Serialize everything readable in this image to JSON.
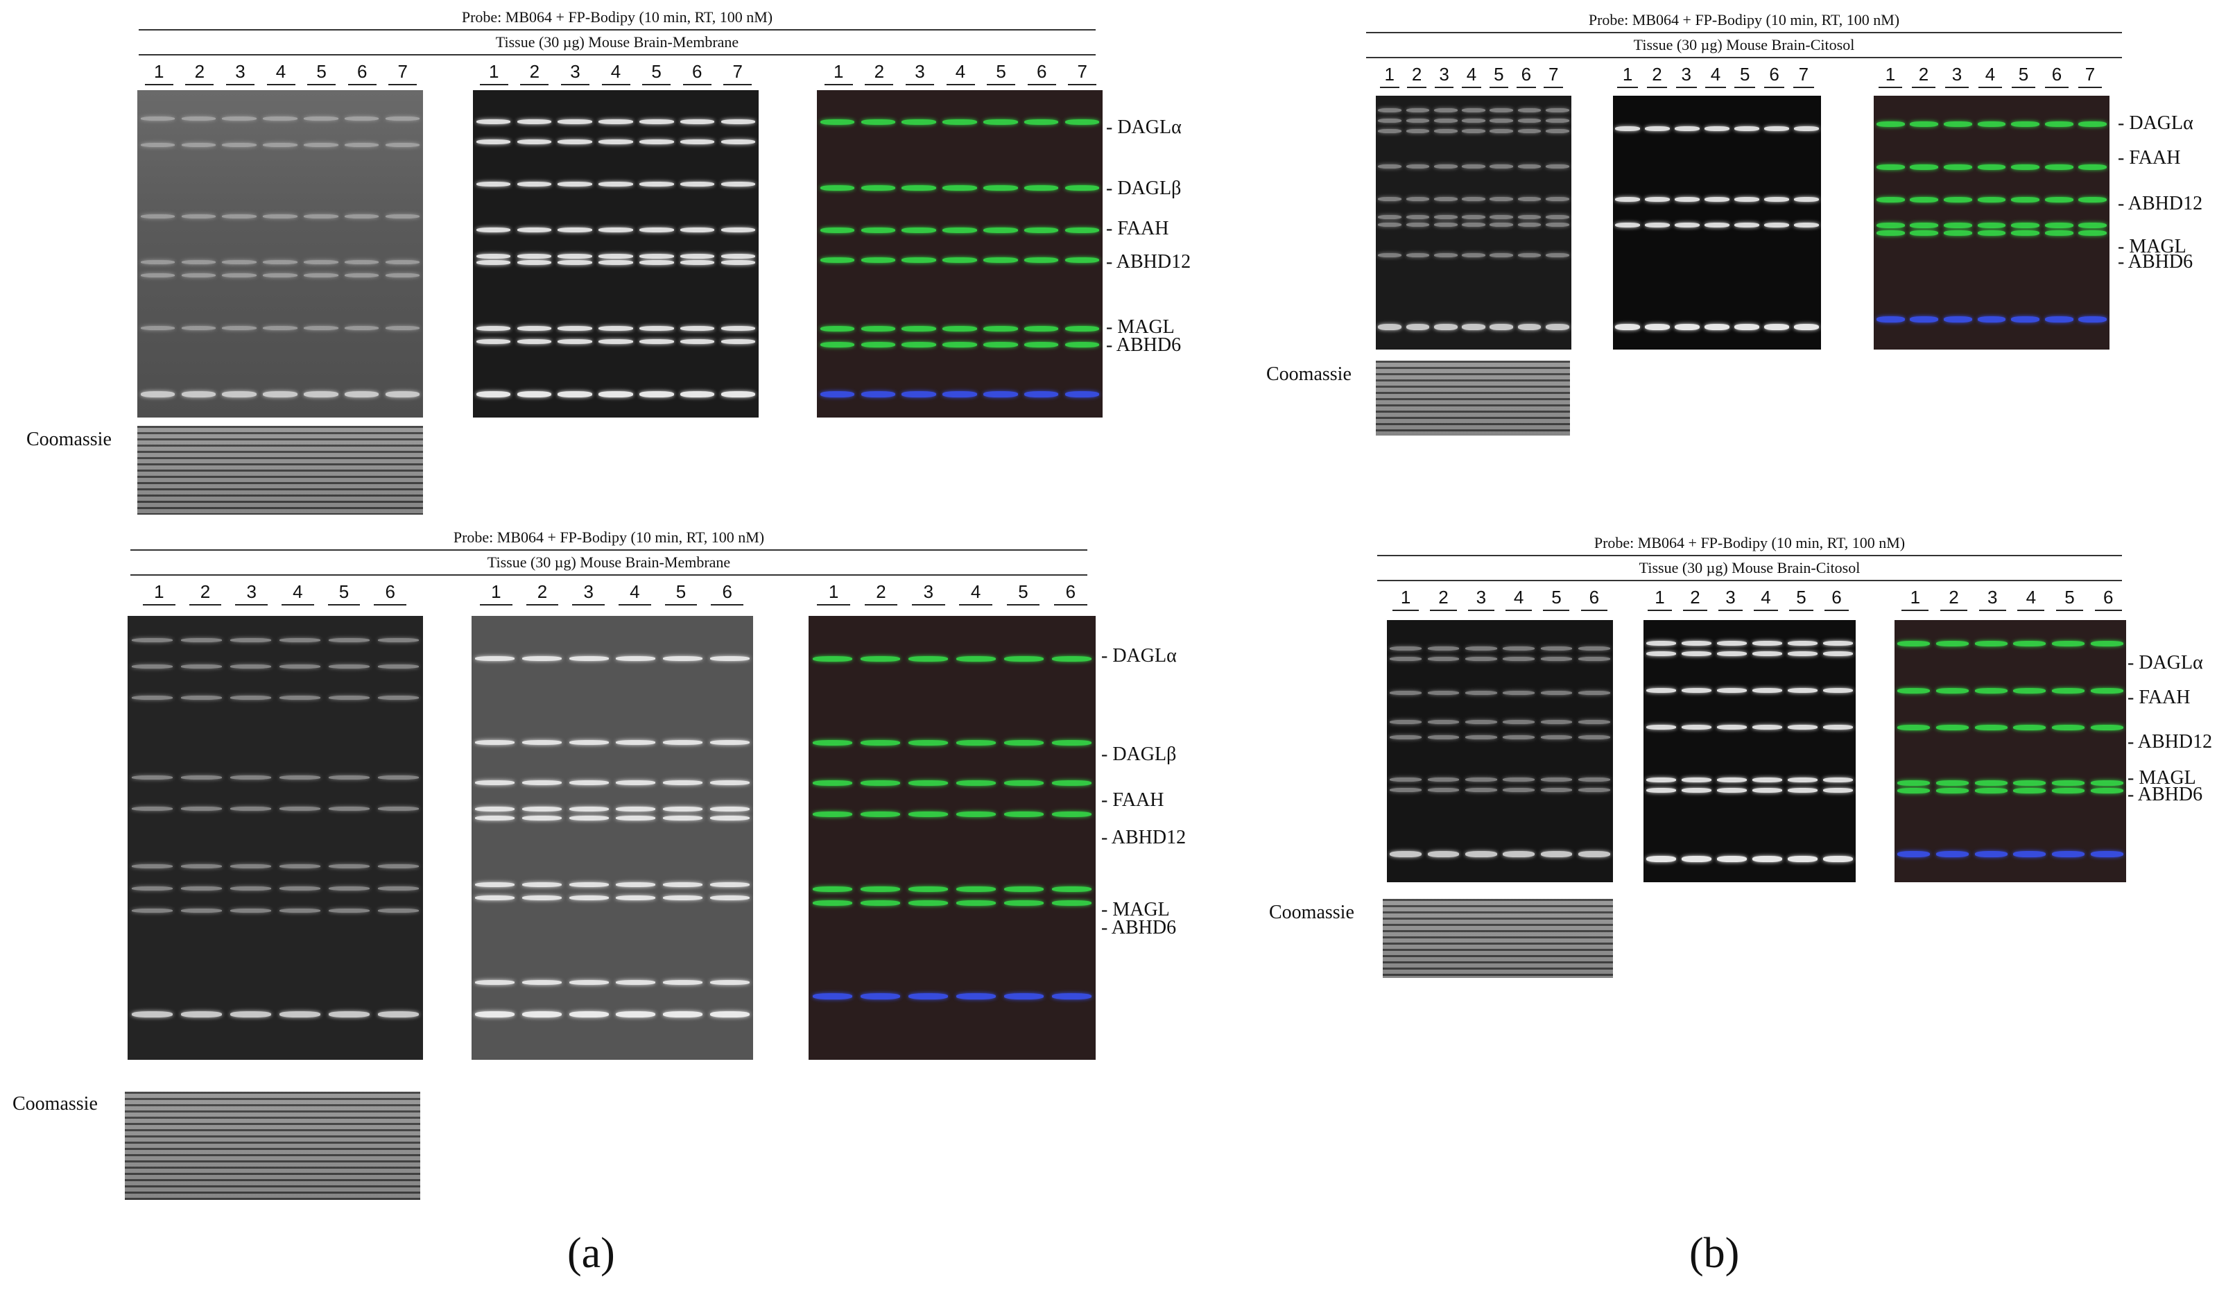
{
  "figure": {
    "panel_a": {
      "label": "(a)",
      "top": {
        "probe": "Probe: MB064 + FP-Bodipy (10 min, RT, 100 nM)",
        "tissue": "Tissue (30 µg) Mouse Brain-Membrane",
        "lanes": [
          "1",
          "2",
          "3",
          "4",
          "5",
          "6",
          "7"
        ],
        "markers": [
          "- DAGLα",
          "- DAGLβ",
          "- FAAH",
          "- ABHD12",
          "- MAGL",
          "- ABHD6"
        ],
        "coomassie": "Coomassie"
      },
      "bottom": {
        "probe": "Probe: MB064 + FP-Bodipy (10 min, RT, 100 nM)",
        "tissue": "Tissue (30 µg) Mouse Brain-Membrane",
        "lanes": [
          "1",
          "2",
          "3",
          "4",
          "5",
          "6"
        ],
        "markers": [
          "- DAGLα",
          "- DAGLβ",
          "- FAAH",
          "- ABHD12",
          "- MAGL",
          "- ABHD6"
        ],
        "coomassie": "Coomassie"
      }
    },
    "panel_b": {
      "label": "(b)",
      "top": {
        "probe": "Probe: MB064 + FP-Bodipy (10 min, RT, 100 nM)",
        "tissue": "Tissue (30 µg) Mouse Brain-Citosol",
        "lanes": [
          "1",
          "2",
          "3",
          "4",
          "5",
          "6",
          "7"
        ],
        "markers": [
          "- DAGLα",
          "- FAAH",
          "- ABHD12",
          "- MAGL",
          "- ABHD6"
        ],
        "coomassie": "Coomassie"
      },
      "bottom": {
        "probe": "Probe: MB064 + FP-Bodipy (10 min, RT, 100 nM)",
        "tissue": "Tissue (30 µg) Mouse Brain-Citosol",
        "lanes": [
          "1",
          "2",
          "3",
          "4",
          "5",
          "6"
        ],
        "markers": [
          "- DAGLα",
          "- FAAH",
          "- ABHD12",
          "- MAGL",
          "- ABHD6"
        ],
        "coomassie": "Coomassie"
      }
    }
  },
  "colors": {
    "green_band": "#35e84a",
    "blue_band": "#3a55ff",
    "red_bg": "#3a1e1e"
  }
}
